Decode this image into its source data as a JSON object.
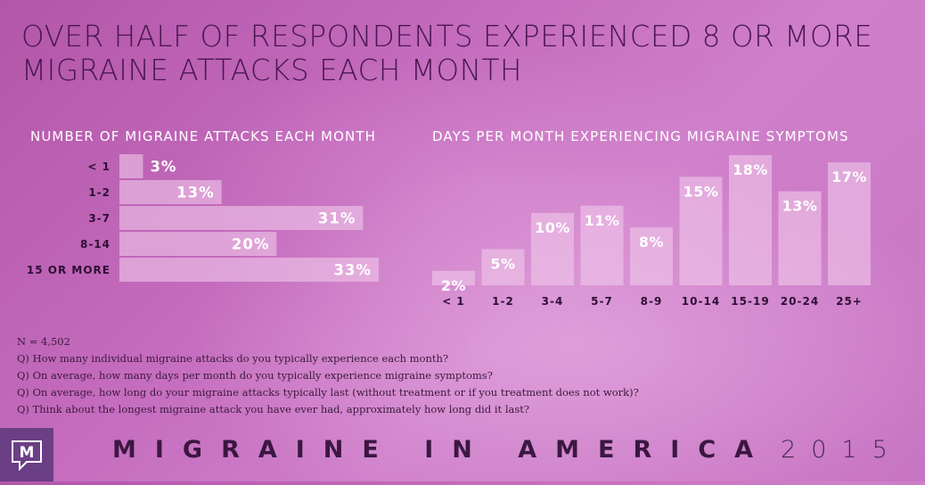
{
  "title": "OVER HALF OF RESPONDENTS EXPERIENCED 8 OR MORE MIGRAINE ATTACKS EACH MONTH",
  "colors": {
    "title_text": "#4a1750",
    "bar_fill": "#f0c8ea",
    "bar_label": "#ffffff",
    "category_label": "#2e0f35",
    "logo_bg": "#6a3f86"
  },
  "chart_data": [
    {
      "type": "bar",
      "orientation": "horizontal",
      "title": "NUMBER OF MIGRAINE ATTACKS EACH MONTH",
      "categories": [
        "< 1",
        "1-2",
        "3-7",
        "8-14",
        "15 OR MORE"
      ],
      "values": [
        3,
        13,
        31,
        20,
        33
      ],
      "value_labels": [
        "3%",
        "13%",
        "31%",
        "20%",
        "33%"
      ],
      "unit": "%",
      "xlim": [
        0,
        33
      ],
      "grid": false,
      "legend": "none"
    },
    {
      "type": "bar",
      "orientation": "vertical",
      "title": "DAYS PER MONTH EXPERIENCING MIGRAINE SYMPTOMS",
      "categories": [
        "< 1",
        "1-2",
        "3-4",
        "5-7",
        "8-9",
        "10-14",
        "15-19",
        "20-24",
        "25+"
      ],
      "values": [
        2,
        5,
        10,
        11,
        8,
        15,
        18,
        13,
        17
      ],
      "value_labels": [
        "2%",
        "5%",
        "10%",
        "11%",
        "8%",
        "15%",
        "18%",
        "13%",
        "17%"
      ],
      "unit": "%",
      "ylim": [
        0,
        18
      ],
      "grid": false,
      "legend": "none"
    }
  ],
  "footnotes": [
    "N = 4,502",
    "Q) How many individual migraine attacks do you typically experience each month?",
    "Q) On average, how many days per month do you typically experience migraine symptoms?",
    "Q) On average, how long do your migraine attacks typically last (without treatment or if you treatment does not work)?",
    "Q) Think about the longest migraine attack you have ever had, approximately how long did it last?"
  ],
  "brand": {
    "logo_letter": "M",
    "name": "MIGRAINE IN AMERICA",
    "year": "2015"
  }
}
